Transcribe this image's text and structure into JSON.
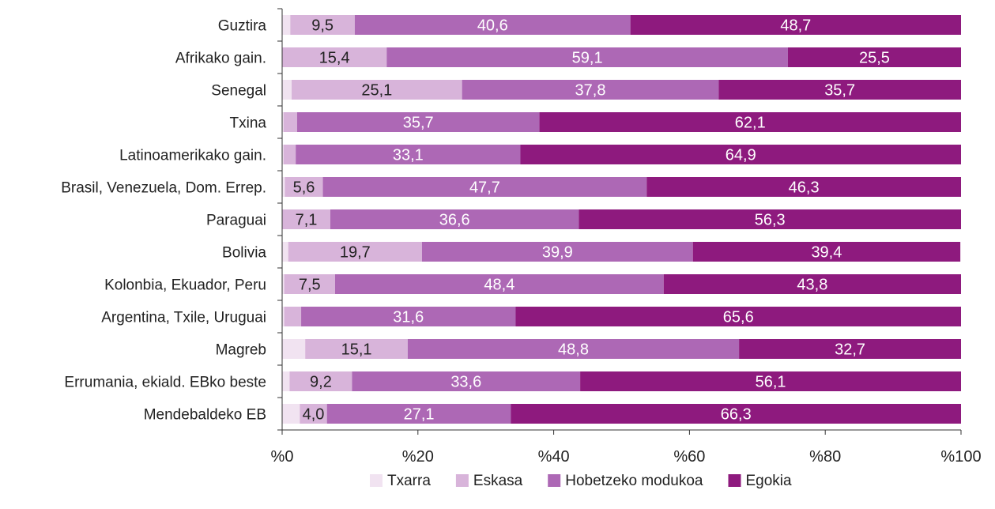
{
  "chart_data": {
    "type": "bar",
    "orientation": "horizontal",
    "stacked": true,
    "categories": [
      "Guztira",
      "Afrikako gain.",
      "Senegal",
      "Txina",
      "Latinoamerikako gain.",
      "Brasil, Venezuela, Dom. Errep.",
      "Paraguai",
      "Bolivia",
      "Kolonbia, Ekuador, Peru",
      "Argentina, Txile, Uruguai",
      "Magreb",
      "Errumania, ekiald. EBko beste",
      "Mendebaldeko EB"
    ],
    "series": [
      {
        "name": "Txarra",
        "color": "#f1e3f1",
        "values": [
          1.2,
          0.0,
          1.4,
          0.2,
          0.2,
          0.4,
          0.0,
          0.9,
          0.3,
          0.3,
          3.4,
          1.1,
          2.6
        ],
        "labels": [
          "",
          "",
          "",
          "",
          "",
          "",
          "",
          "",
          "",
          "",
          "",
          "",
          ""
        ]
      },
      {
        "name": "Eskasa",
        "color": "#d8b4da",
        "values": [
          9.5,
          15.4,
          25.1,
          2.0,
          1.8,
          5.6,
          7.1,
          19.7,
          7.5,
          2.5,
          15.1,
          9.2,
          4.0
        ],
        "labels": [
          "9,5",
          "15,4",
          "25,1",
          "",
          "",
          "5,6",
          "7,1",
          "19,7",
          "7,5",
          "",
          "15,1",
          "9,2",
          "4,0"
        ]
      },
      {
        "name": "Hobetzeko modukoa",
        "color": "#ad68b5",
        "values": [
          40.6,
          59.1,
          37.8,
          35.7,
          33.1,
          47.7,
          36.6,
          39.9,
          48.4,
          31.6,
          48.8,
          33.6,
          27.1
        ],
        "labels": [
          "40,6",
          "59,1",
          "37,8",
          "35,7",
          "33,1",
          "47,7",
          "36,6",
          "39,9",
          "48,4",
          "31,6",
          "48,8",
          "33,6",
          "27,1"
        ]
      },
      {
        "name": "Egokia",
        "color": "#8e1a7e",
        "values": [
          48.7,
          25.5,
          35.7,
          62.1,
          64.9,
          46.3,
          56.3,
          39.4,
          43.8,
          65.6,
          32.7,
          56.1,
          66.3
        ],
        "labels": [
          "48,7",
          "25,5",
          "35,7",
          "62,1",
          "64,9",
          "46,3",
          "56,3",
          "39,4",
          "43,8",
          "65,6",
          "32,7",
          "56,1",
          "66,3"
        ]
      }
    ],
    "xlim": [
      0,
      100
    ],
    "x_ticks": [
      "%0",
      "%20",
      "%40",
      "%60",
      "%80",
      "%100"
    ],
    "legend_position": "bottom",
    "grid": false,
    "title": "",
    "xlabel": "",
    "ylabel": ""
  }
}
